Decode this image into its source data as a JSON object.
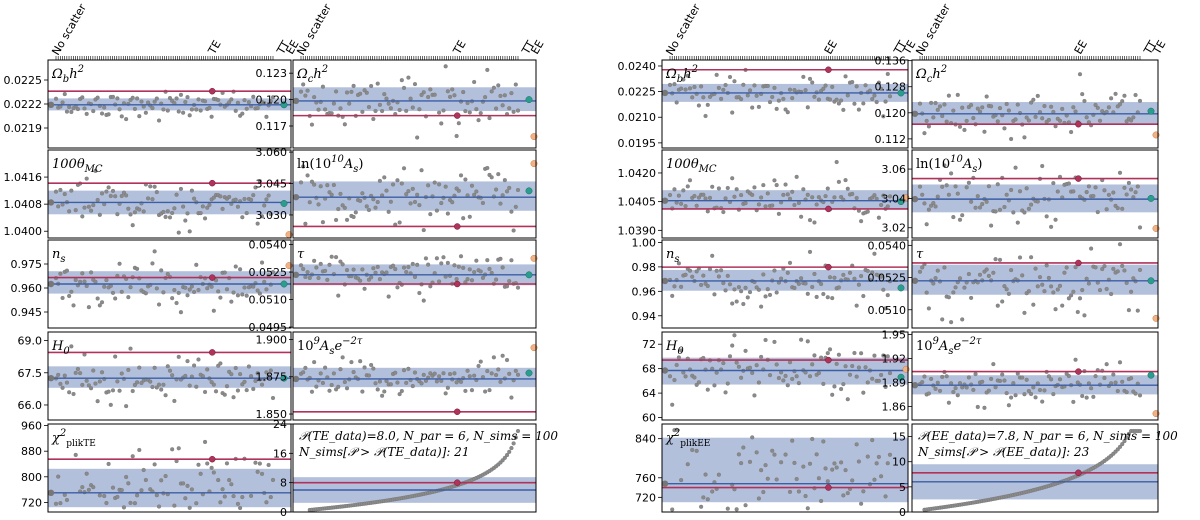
{
  "colors": {
    "band": "#b3c0dc",
    "center_line": "#3b5ea6",
    "data_line": "#b1325a",
    "point": "#8a8a8a",
    "point_edge": "#6b6b6b",
    "highlight_teal": "#2a9d8f",
    "highlight_peach": "#f4b183",
    "start_point": "#777777"
  },
  "chart_data": [
    {
      "id": "left_figure",
      "type": "scatter",
      "spectrum": "TE",
      "top_labels": {
        "left": "No scatter",
        "marker": "TE",
        "right_a": "TT",
        "right_b": "EE"
      },
      "columns": [
        [
          {
            "title": "Ω_b h²",
            "yticks": [
              "0.0225",
              "0.0222",
              "0.0219"
            ],
            "yvals": [
              0.0225,
              0.0222,
              0.0219
            ],
            "ylim": [
              0.02165,
              0.02275
            ],
            "center": 0.02219,
            "band": [
              0.02212,
              0.02227
            ],
            "data_value": 0.02236,
            "red_point": 0.02236,
            "teal": 0.02219,
            "peach": null
          },
          {
            "title": "100θ_MC",
            "yticks": [
              "1.0416",
              "1.0408",
              "1.0400"
            ],
            "yvals": [
              1.0416,
              1.0408,
              1.04
            ],
            "ylim": [
              1.0398,
              1.0424
            ],
            "center": 1.04085,
            "band": [
              1.0405,
              1.0412
            ],
            "data_value": 1.04142,
            "red_point": 1.04142,
            "teal": 1.04082,
            "peach": 1.0399
          },
          {
            "title": "n_s",
            "yticks": [
              "0.975",
              "0.960",
              "0.945"
            ],
            "yvals": [
              0.975,
              0.96,
              0.945
            ],
            "ylim": [
              0.935,
              0.99
            ],
            "center": 0.9625,
            "band": [
              0.9565,
              0.9705
            ],
            "data_value": 0.9665,
            "red_point": 0.9665,
            "teal": 0.9625,
            "peach": 0.974
          },
          {
            "title": "H_0",
            "yticks": [
              "69.0",
              "67.5",
              "66.0"
            ],
            "yvals": [
              69.0,
              67.5,
              66.0
            ],
            "ylim": [
              65.3,
              69.4
            ],
            "center": 67.25,
            "band": [
              66.8,
              67.8
            ],
            "data_value": 68.45,
            "red_point": 68.45,
            "teal": 67.25,
            "peach": null
          },
          {
            "title": "χ²_plikTE",
            "yticks": [
              "960",
              "880",
              "800",
              "720"
            ],
            "yvals": [
              960,
              880,
              800,
              720
            ],
            "ylim": [
              690,
              965
            ],
            "center": 750,
            "band": [
              705,
              825
            ],
            "data_value": 855,
            "red_point": 855,
            "teal": null,
            "peach": null
          }
        ],
        [
          {
            "title": "Ω_c h²",
            "yticks": [
              "0.123",
              "0.120",
              "0.117"
            ],
            "yvals": [
              0.123,
              0.12,
              0.117
            ],
            "ylim": [
              0.1145,
              0.1245
            ],
            "center": 0.11985,
            "band": [
              0.1187,
              0.1214
            ],
            "data_value": 0.11818,
            "red_point": 0.11818,
            "teal": 0.12,
            "peach": 0.1158
          },
          {
            "title": "ln(10¹⁰A_s)",
            "yticks": [
              "3.060",
              "3.045",
              "3.030"
            ],
            "yvals": [
              3.06,
              3.045,
              3.03
            ],
            "ylim": [
              3.019,
              3.061
            ],
            "center": 3.0385,
            "band": [
              3.032,
              3.046
            ],
            "data_value": 3.0245,
            "red_point": 3.0245,
            "teal": 3.0415,
            "peach": 3.0545
          },
          {
            "title": "τ",
            "yticks": [
              "0.0540",
              "0.0525",
              "0.0510",
              "0.0495"
            ],
            "yvals": [
              0.054,
              0.0525,
              0.051,
              0.0495
            ],
            "ylim": [
              0.04945,
              0.05425
            ],
            "center": 0.05235,
            "band": [
              0.05178,
              0.05292
            ],
            "data_value": 0.05185,
            "red_point": 0.05185,
            "teal": 0.05235,
            "peach": 0.05325
          },
          {
            "title": "10⁹A_s e^(−2τ)",
            "yticks": [
              "1.900",
              "1.875",
              "1.850"
            ],
            "yvals": [
              1.9,
              1.875,
              1.85
            ],
            "ylim": [
              1.846,
              1.905
            ],
            "center": 1.8735,
            "band": [
              1.868,
              1.881
            ],
            "data_value": 1.8515,
            "red_point": 1.8515,
            "teal": 1.8775,
            "peach": 1.8945
          },
          {
            "title": "pvalue",
            "yticks": [
              "24",
              "16",
              "8",
              "0"
            ],
            "yvals": [
              24,
              16,
              8,
              0
            ],
            "ylim": [
              0,
              24
            ],
            "center": 6.0,
            "band": [
              2.5,
              9.5
            ],
            "data_value": 8.0,
            "red_point": 8.0,
            "teal": null,
            "peach": null,
            "annotation_line1": "𝒫(TE_data)=8.0, N_par = 6, N_sims =  100",
            "annotation_line2": "N_sims[𝒫 > 𝒫(TE_data)]: 21"
          }
        ]
      ]
    },
    {
      "id": "right_figure",
      "type": "scatter",
      "spectrum": "EE",
      "top_labels": {
        "left": "No scatter",
        "marker": "EE",
        "right_a": "TT",
        "right_b": "TE"
      },
      "columns": [
        [
          {
            "title": "Ω_b h²",
            "yticks": [
              "0.0240",
              "0.0225",
              "0.0210",
              "0.0195"
            ],
            "yvals": [
              0.024,
              0.0225,
              0.021,
              0.0195
            ],
            "ylim": [
              0.0192,
              0.02435
            ],
            "center": 0.02242,
            "band": [
              0.0219,
              0.02295
            ],
            "data_value": 0.02378,
            "red_point": 0.02378,
            "teal": 0.02242,
            "peach": null
          },
          {
            "title": "100θ_MC",
            "yticks": [
              "1.0420",
              "1.0405",
              "1.0390"
            ],
            "yvals": [
              1.042,
              1.0405,
              1.039
            ],
            "ylim": [
              1.0386,
              1.0432
            ],
            "center": 1.04055,
            "band": [
              1.0401,
              1.0411
            ],
            "data_value": 1.04012,
            "red_point": 1.04012,
            "teal": 1.0405,
            "peach": 1.0407
          },
          {
            "title": "n_s",
            "yticks": [
              "1.00",
              "0.98",
              "0.96",
              "0.94"
            ],
            "yvals": [
              1.0,
              0.98,
              0.96,
              0.94
            ],
            "ylim": [
              0.93,
              1.002
            ],
            "center": 0.9685,
            "band": [
              0.9605,
              0.9775
            ],
            "data_value": 0.9798,
            "red_point": 0.9798,
            "teal": 0.9628,
            "peach": null
          },
          {
            "title": "H_0",
            "yticks": [
              "72",
              "68",
              "64",
              "60"
            ],
            "yvals": [
              72,
              68,
              64,
              60
            ],
            "ylim": [
              59.6,
              74.0
            ],
            "center": 67.7,
            "band": [
              65.4,
              69.8
            ],
            "data_value": 69.4,
            "red_point": 69.4,
            "teal": 66.6,
            "peach": 67.9
          },
          {
            "title": "χ²_plikEE",
            "yticks": [
              "840",
              "760",
              "720"
            ],
            "yvals": [
              840,
              760,
              720
            ],
            "ylim": [
              690,
              870
            ],
            "center": 748,
            "band": [
              710,
              842
            ],
            "data_value": 740,
            "red_point": 740,
            "teal": null,
            "peach": null
          }
        ],
        [
          {
            "title": "Ω_c h²",
            "yticks": [
              "0.136",
              "0.128",
              "0.120",
              "0.112"
            ],
            "yvals": [
              0.136,
              0.128,
              0.12,
              0.112
            ],
            "ylim": [
              0.1092,
              0.1362
            ],
            "center": 0.1197,
            "band": [
              0.1165,
              0.1233
            ],
            "data_value": 0.1165,
            "red_point": 0.1165,
            "teal": 0.1205,
            "peach": 0.1132
          },
          {
            "title": "ln(10¹⁰A_s)",
            "yticks": [
              "3.06",
              "3.04",
              "3.02"
            ],
            "yvals": [
              3.06,
              3.04,
              3.02
            ],
            "ylim": [
              3.013,
              3.073
            ],
            "center": 3.0395,
            "band": [
              3.0305,
              3.0495
            ],
            "data_value": 3.0535,
            "red_point": 3.0535,
            "teal": 3.04,
            "peach": 3.0195
          },
          {
            "title": "τ",
            "yticks": [
              "0.0540",
              "0.0525",
              "0.0510"
            ],
            "yvals": [
              0.054,
              0.0525,
              0.051
            ],
            "ylim": [
              0.05015,
              0.05425
            ],
            "center": 0.05235,
            "band": [
              0.0517,
              0.0531
            ],
            "data_value": 0.05318,
            "red_point": 0.05318,
            "teal": 0.05235,
            "peach": 0.0506
          },
          {
            "title": "10⁹A_s e^(−2τ)",
            "yticks": [
              "1.95",
              "1.92",
              "1.89",
              "1.86"
            ],
            "yvals": [
              1.95,
              1.92,
              1.89,
              1.86
            ],
            "ylim": [
              1.843,
              1.953
            ],
            "center": 1.8865,
            "band": [
              1.875,
              1.899
            ],
            "data_value": 1.9035,
            "red_point": 1.9035,
            "teal": 1.899,
            "peach": 1.851
          },
          {
            "title": "pvalue",
            "yticks": [
              "15",
              "10",
              "5",
              "0"
            ],
            "yvals": [
              15,
              10,
              5,
              0
            ],
            "ylim": [
              0,
              17.5
            ],
            "center": 6.0,
            "band": [
              2.5,
              9.5
            ],
            "data_value": 7.8,
            "red_point": 7.8,
            "teal": null,
            "peach": null,
            "annotation_line1": "𝒫(EE_data)=7.8, N_par = 6, N_sims =  100",
            "annotation_line2": "N_sims[𝒫 > 𝒫(EE_data)]: 23"
          }
        ]
      ]
    }
  ]
}
